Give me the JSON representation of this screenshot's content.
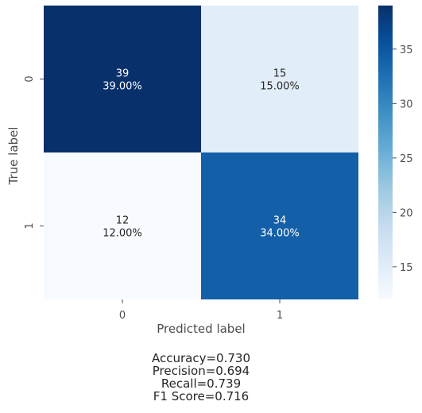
{
  "chart_data": {
    "type": "heatmap",
    "row_labels": [
      "0",
      "1"
    ],
    "col_labels": [
      "0",
      "1"
    ],
    "values": [
      [
        39,
        15
      ],
      [
        12,
        34
      ]
    ],
    "cell_text": [
      [
        "39",
        "15"
      ],
      [
        "12",
        "34"
      ]
    ],
    "cell_percent": [
      [
        "39.00%",
        "15.00%"
      ],
      [
        "12.00%",
        "34.00%"
      ]
    ],
    "xlabel": "Predicted label",
    "ylabel": "True label",
    "colormap": "Blues",
    "vmin": 12,
    "vmax": 39,
    "colorbar_ticks": [
      "15",
      "20",
      "25",
      "30",
      "35"
    ],
    "colorbar_tick_values": [
      15,
      20,
      25,
      30,
      35
    ],
    "metrics": [
      "Accuracy=0.730",
      "Precision=0.694",
      "Recall=0.739",
      "F1 Score=0.716"
    ]
  }
}
